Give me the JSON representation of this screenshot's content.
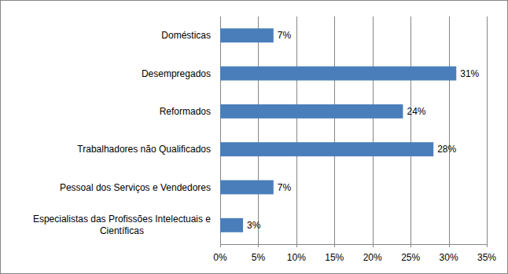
{
  "chart_data": {
    "type": "bar",
    "orientation": "horizontal",
    "categories": [
      "Domésticas",
      "Desempregados",
      "Reformados",
      "Trabalhadores não Qualificados",
      "Pessoal dos Serviços e Vendedores",
      "Especialistas das Profissões Intelectuais e Científicas"
    ],
    "values": [
      7,
      31,
      24,
      28,
      7,
      3
    ],
    "value_labels": [
      "7%",
      "31%",
      "24%",
      "28%",
      "7%",
      "3%"
    ],
    "color": "#4a7ebb",
    "xlim": [
      0,
      35
    ],
    "xticks": [
      {
        "value": 0,
        "label": "0%"
      },
      {
        "value": 5,
        "label": "5%"
      },
      {
        "value": 10,
        "label": "10%"
      },
      {
        "value": 15,
        "label": "15%"
      },
      {
        "value": 20,
        "label": "20%"
      },
      {
        "value": 25,
        "label": "25%"
      },
      {
        "value": 30,
        "label": "30%"
      },
      {
        "value": 35,
        "label": "35%"
      }
    ],
    "grid": true,
    "data_labels": true
  }
}
